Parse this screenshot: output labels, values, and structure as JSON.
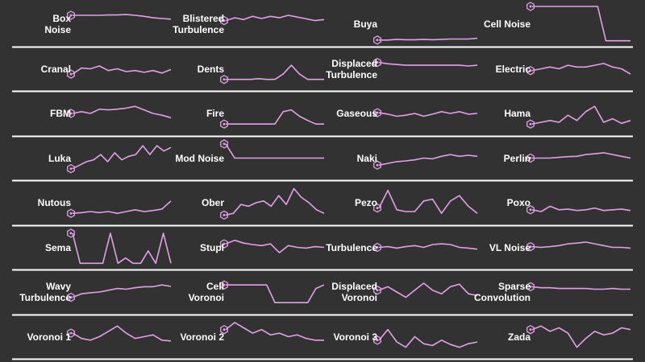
{
  "colors": {
    "background": "#323232",
    "curve": "#e2a0e6",
    "divider": "#ffffff",
    "label": "#ffffff"
  },
  "icons": {
    "node": "hexagon-node-icon"
  },
  "chart_data": {
    "type": "line",
    "layout": "small-multiples",
    "columns": 4,
    "rows": 8,
    "ylim": [
      0,
      1
    ],
    "panels": [
      {
        "name": "Box\nNoise",
        "values": [
          0.75,
          0.75,
          0.75,
          0.75,
          0.76,
          0.76,
          0.77,
          0.75,
          0.72,
          0.68,
          0.66,
          0.64
        ]
      },
      {
        "name": "Blistered\nTurbulence",
        "values": [
          0.6,
          0.68,
          0.63,
          0.72,
          0.66,
          0.72,
          0.68,
          0.75,
          0.7,
          0.65,
          0.6,
          0.63
        ]
      },
      {
        "name": "Buya",
        "values": [
          0.05,
          0.05,
          0.07,
          0.06,
          0.06,
          0.07,
          0.06,
          0.07,
          0.08,
          0.08,
          0.08,
          0.1
        ]
      },
      {
        "name": "Cell Noise",
        "values": [
          1,
          1,
          1,
          1,
          1,
          1,
          1,
          1,
          1,
          0.03,
          0.03,
          0.03,
          0.03
        ]
      },
      {
        "name": "Cranal",
        "values": [
          0.35,
          0.52,
          0.5,
          0.58,
          0.45,
          0.5,
          0.42,
          0.45,
          0.4,
          0.45,
          0.38,
          0.48
        ]
      },
      {
        "name": "Dents",
        "values": [
          0.2,
          0.2,
          0.2,
          0.2,
          0.22,
          0.2,
          0.2,
          0.35,
          0.6,
          0.35,
          0.2,
          0.2,
          0.2
        ]
      },
      {
        "name": "Displaced\nTurbulence",
        "values": [
          0.68,
          0.64,
          0.62,
          0.6,
          0.6,
          0.6,
          0.6,
          0.6,
          0.6,
          0.6,
          0.58,
          0.6
        ]
      },
      {
        "name": "Electric",
        "values": [
          0.45,
          0.5,
          0.55,
          0.5,
          0.6,
          0.55,
          0.55,
          0.6,
          0.65,
          0.55,
          0.5,
          0.35
        ]
      },
      {
        "name": "FBM",
        "values": [
          0.5,
          0.55,
          0.5,
          0.62,
          0.6,
          0.62,
          0.65,
          0.7,
          0.6,
          0.5,
          0.45,
          0.38
        ]
      },
      {
        "name": "Fire",
        "values": [
          0.2,
          0.2,
          0.2,
          0.2,
          0.2,
          0.2,
          0.2,
          0.55,
          0.6,
          0.42,
          0.3,
          0.2,
          0.2
        ]
      },
      {
        "name": "Gaseous",
        "values": [
          0.52,
          0.48,
          0.42,
          0.45,
          0.5,
          0.42,
          0.48,
          0.55,
          0.5,
          0.55,
          0.48,
          0.5
        ]
      },
      {
        "name": "Hama",
        "values": [
          0.2,
          0.25,
          0.3,
          0.25,
          0.45,
          0.3,
          0.55,
          0.7,
          0.25,
          0.35,
          0.22,
          0.3
        ]
      },
      {
        "name": "Luka",
        "values": [
          0.2,
          0.3,
          0.4,
          0.45,
          0.6,
          0.4,
          0.65,
          0.45,
          0.55,
          0.6,
          0.85,
          0.6,
          0.85,
          0.7,
          0.8
        ]
      },
      {
        "name": "Mod Noise",
        "values": [
          0.9,
          0.5,
          0.5,
          0.5,
          0.5,
          0.5,
          0.5,
          0.5,
          0.5,
          0.5,
          0.5,
          0.5
        ]
      },
      {
        "name": "Naki",
        "values": [
          0.3,
          0.35,
          0.4,
          0.42,
          0.45,
          0.5,
          0.48,
          0.55,
          0.6,
          0.55,
          0.58,
          0.55
        ]
      },
      {
        "name": "Perlin",
        "values": [
          0.5,
          0.5,
          0.5,
          0.52,
          0.54,
          0.55,
          0.6,
          0.62,
          0.65,
          0.6,
          0.55,
          0.5
        ]
      },
      {
        "name": "Nutous",
        "values": [
          0.2,
          0.22,
          0.25,
          0.22,
          0.25,
          0.2,
          0.25,
          0.3,
          0.25,
          0.28,
          0.32,
          0.55
        ]
      },
      {
        "name": "Ober",
        "values": [
          0.15,
          0.2,
          0.45,
          0.4,
          0.5,
          0.55,
          0.4,
          0.7,
          0.45,
          0.9,
          0.65,
          0.5,
          0.3,
          0.2
        ]
      },
      {
        "name": "Pezo",
        "values": [
          0.35,
          0.85,
          0.3,
          0.25,
          0.25,
          0.55,
          0.6,
          0.2,
          0.55,
          0.7,
          0.4,
          0.2
        ]
      },
      {
        "name": "Poxo",
        "values": [
          0.3,
          0.25,
          0.4,
          0.3,
          0.32,
          0.28,
          0.3,
          0.35,
          0.28,
          0.3,
          0.32,
          0.28
        ]
      },
      {
        "name": "Sema",
        "values": [
          0.9,
          0.05,
          0.05,
          0.05,
          0.05,
          0.9,
          0.05,
          0.2,
          0.05,
          0.05,
          0.4,
          0.05,
          0.9,
          0.05
        ]
      },
      {
        "name": "Stupl",
        "values": [
          0.6,
          0.7,
          0.62,
          0.58,
          0.55,
          0.6,
          0.35,
          0.55,
          0.5,
          0.48,
          0.52,
          0.5
        ]
      },
      {
        "name": "Turbulence",
        "values": [
          0.5,
          0.52,
          0.48,
          0.52,
          0.55,
          0.5,
          0.58,
          0.6,
          0.58,
          0.5,
          0.48,
          0.45
        ]
      },
      {
        "name": "VL Noise",
        "values": [
          0.52,
          0.5,
          0.52,
          0.55,
          0.6,
          0.62,
          0.65,
          0.6,
          0.55,
          0.5,
          0.5,
          0.48
        ]
      },
      {
        "name": "Wavy\nTurbulence",
        "values": [
          0.35,
          0.45,
          0.48,
          0.5,
          0.55,
          0.6,
          0.58,
          0.62,
          0.65,
          0.65,
          0.7,
          0.66
        ]
      },
      {
        "name": "Cell\nVoronoi",
        "values": [
          0.7,
          0.7,
          0.7,
          0.7,
          0.7,
          0.7,
          0.2,
          0.2,
          0.2,
          0.2,
          0.2,
          0.6,
          0.7
        ]
      },
      {
        "name": "Displaced\nVoronoi",
        "values": [
          0.55,
          0.65,
          0.5,
          0.35,
          0.55,
          0.75,
          0.55,
          0.45,
          0.65,
          0.72,
          0.45,
          0.4
        ]
      },
      {
        "name": "Sparse\nConvolution",
        "values": [
          0.65,
          0.62,
          0.62,
          0.6,
          0.6,
          0.6,
          0.6,
          0.58,
          0.58,
          0.6,
          0.58,
          0.58
        ]
      },
      {
        "name": "Voronoi 1",
        "values": [
          0.6,
          0.45,
          0.4,
          0.5,
          0.65,
          0.8,
          0.6,
          0.45,
          0.5,
          0.55,
          0.4,
          0.38
        ]
      },
      {
        "name": "Voronoi 2",
        "values": [
          0.7,
          0.9,
          0.75,
          0.6,
          0.7,
          0.55,
          0.6,
          0.5,
          0.55,
          0.45,
          0.4,
          0.4
        ]
      },
      {
        "name": "Voronoi 3",
        "values": [
          0.4,
          0.7,
          0.35,
          0.2,
          0.5,
          0.3,
          0.25,
          0.4,
          0.28,
          0.2,
          0.3,
          0.35
        ]
      },
      {
        "name": "Zada",
        "values": [
          0.7,
          0.8,
          0.65,
          0.75,
          0.6,
          0.2,
          0.45,
          0.65,
          0.55,
          0.6,
          0.75,
          0.7
        ]
      }
    ]
  }
}
